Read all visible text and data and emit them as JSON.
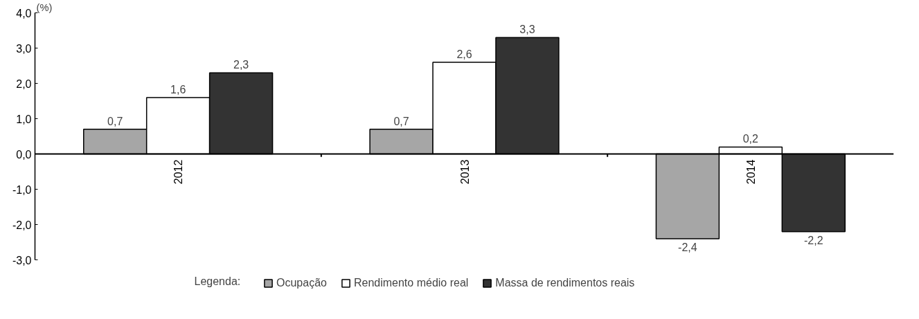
{
  "chart_data": {
    "type": "bar",
    "ylabel": "(%)",
    "legend_title": "Legenda:",
    "categories": [
      "2012",
      "2013",
      "2014"
    ],
    "series": [
      {
        "name": "Ocupação",
        "color": "#a6a6a6",
        "values": [
          0.7,
          0.7,
          -2.4
        ],
        "value_labels": [
          "0,7",
          "0,7",
          "-2,4"
        ]
      },
      {
        "name": "Rendimento médio real",
        "color": "#ffffff",
        "values": [
          1.6,
          2.6,
          0.2
        ],
        "value_labels": [
          "1,6",
          "2,6",
          "0,2"
        ]
      },
      {
        "name": "Massa de rendimentos reais",
        "color": "#333333",
        "values": [
          2.3,
          3.3,
          -2.2
        ],
        "value_labels": [
          "2,3",
          "3,3",
          "-2,2"
        ]
      }
    ],
    "ylim": [
      -3,
      4
    ],
    "yticks": [
      {
        "value": -3,
        "label": "-3,0"
      },
      {
        "value": -2,
        "label": "-2,0"
      },
      {
        "value": -1,
        "label": "-1,0"
      },
      {
        "value": 0,
        "label": "0,0"
      },
      {
        "value": 1,
        "label": "1,0"
      },
      {
        "value": 2,
        "label": "2,0"
      },
      {
        "value": 3,
        "label": "3,0"
      },
      {
        "value": 4,
        "label": "4,0"
      }
    ],
    "legend": "bottom"
  }
}
